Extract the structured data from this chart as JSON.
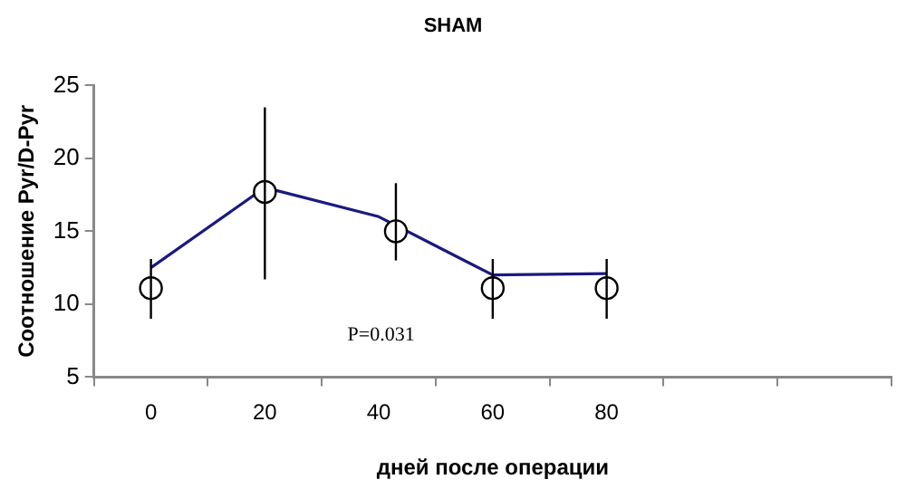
{
  "chart_data": {
    "type": "line",
    "title": "SHAM",
    "xlabel": "дней после операции",
    "ylabel": "Соотношение Pyr/D-Pyr",
    "xlim": [
      -10,
      130
    ],
    "xticks": [
      {
        "value": -10,
        "label": null
      },
      0,
      {
        "value": 10,
        "label": null
      },
      20,
      {
        "value": 30,
        "label": null
      },
      40,
      {
        "value": 50,
        "label": null
      },
      60,
      {
        "value": 70,
        "label": null
      },
      80,
      {
        "value": 90,
        "label": null
      },
      {
        "value": 110,
        "label": null
      },
      {
        "value": 130,
        "label": null
      }
    ],
    "ylim": [
      5,
      25
    ],
    "yticks": [
      5,
      10,
      15,
      20,
      25
    ],
    "grid": false,
    "legend": false,
    "series": [
      {
        "color": "#1a1a80",
        "marker": "none",
        "x": [
          0,
          20,
          40,
          60,
          80
        ],
        "values": [
          12.5,
          18,
          16,
          12,
          12.1
        ]
      },
      {
        "type": "scatter",
        "color": "#000000",
        "marker": "circle",
        "x": [
          0,
          20,
          43,
          60,
          80
        ],
        "values": [
          11.1,
          17.7,
          15,
          11.1,
          11.1
        ],
        "errors": [
          [
            9,
            13.1
          ],
          [
            11.7,
            23.5
          ],
          [
            13,
            18.3
          ],
          [
            9,
            13.1
          ],
          [
            9,
            13.1
          ]
        ]
      }
    ],
    "annotations": [
      "P=0.031"
    ]
  }
}
